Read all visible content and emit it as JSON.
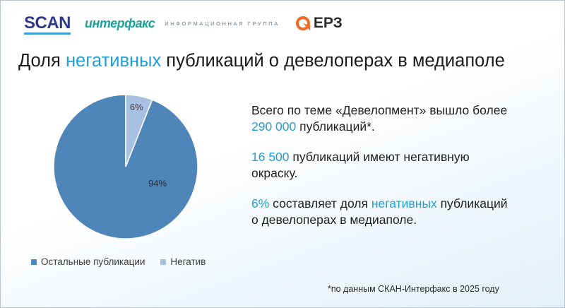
{
  "logos": {
    "scan": "SCAN",
    "interfax": "интерфакс",
    "interfax_sub": "информационная группа",
    "erz": "ЕРЗ"
  },
  "title": {
    "before": "Доля ",
    "highlight": "негативных",
    "after": " публикаций о девелоперах в медиаполе"
  },
  "chart_data": {
    "type": "pie",
    "slices": [
      {
        "name": "Остальные публикации",
        "value": 94,
        "label": "94%",
        "color": "#4e86b9"
      },
      {
        "name": "Негатив",
        "value": 6,
        "label": "6%",
        "color": "#a8c1e2"
      }
    ],
    "legend": "bottom",
    "start_angle_deg": 0
  },
  "text": {
    "p1_a": "Всего по теме «Девелопмент» вышло более",
    "p1_num": "290 000",
    "p1_b": " публикаций*.",
    "p2_num": "16 500",
    "p2_a": " публикаций имеют негативную",
    "p2_b": "окраску.",
    "p3_num": "6%",
    "p3_a": " составляет доля ",
    "p3_hl": "негативных",
    "p3_b": " публикаций",
    "p3_c": "о девелоперах в медиаполе."
  },
  "footnote": "*по данным СКАН-Интерфакс в 2025 году",
  "colors": {
    "accent": "#1e9fd7",
    "pie_main": "#4e86b9",
    "pie_negative": "#a8c1e2"
  }
}
